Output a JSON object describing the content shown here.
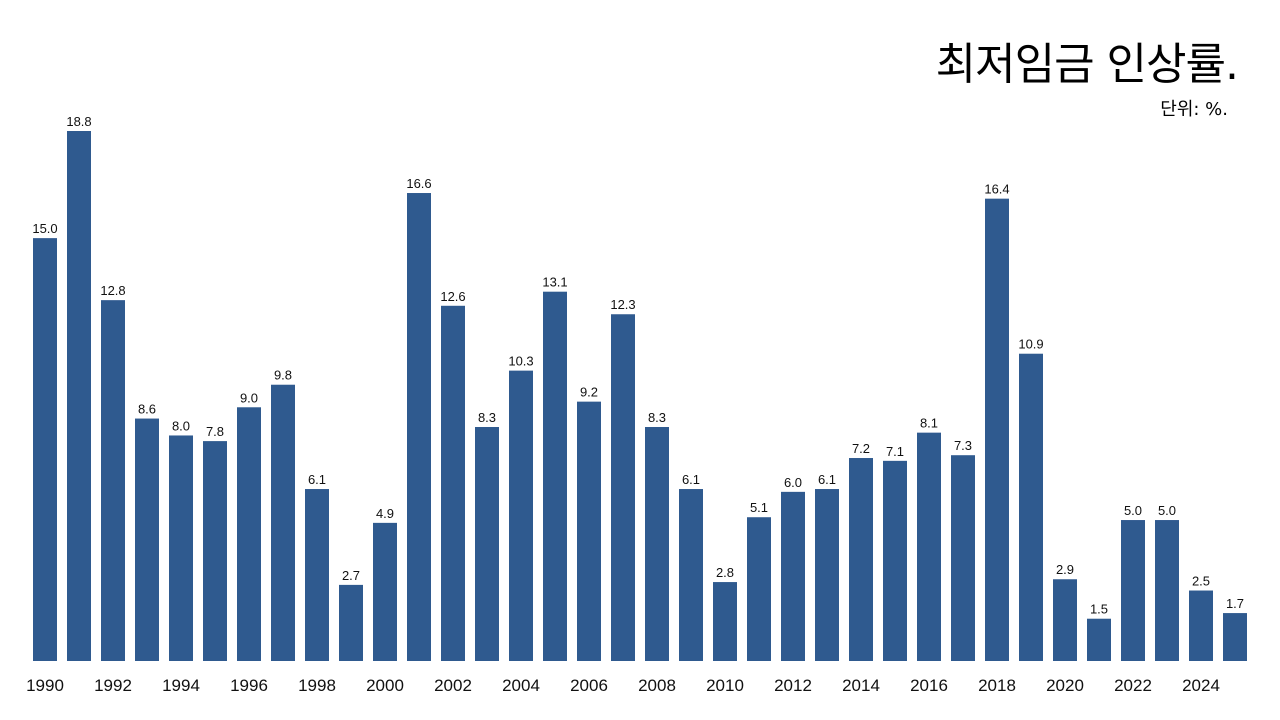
{
  "header": {
    "title": "최저임금 인상률.",
    "unit": "단위: %."
  },
  "colors": {
    "bar": "#2f5a8f",
    "background": "#ffffff",
    "text": "#111111"
  },
  "chart_data": {
    "type": "bar",
    "title": "최저임금 인상률.",
    "subtitle": "단위: %.",
    "xlabel": "",
    "ylabel": "",
    "categories": [
      "1990",
      "1991",
      "1992",
      "1993",
      "1994",
      "1995",
      "1996",
      "1997",
      "1998",
      "1999",
      "2000",
      "2001",
      "2002",
      "2003",
      "2004",
      "2005",
      "2006",
      "2007",
      "2008",
      "2009",
      "2010",
      "2011",
      "2012",
      "2013",
      "2014",
      "2015",
      "2016",
      "2017",
      "2018",
      "2019",
      "2020",
      "2021",
      "2022",
      "2023",
      "2024",
      "2025"
    ],
    "values": [
      15.0,
      18.8,
      12.8,
      8.6,
      8.0,
      7.8,
      9.0,
      9.8,
      6.1,
      2.7,
      4.9,
      16.6,
      12.6,
      8.3,
      10.3,
      13.1,
      9.2,
      12.3,
      8.3,
      6.1,
      2.8,
      5.1,
      6.0,
      6.1,
      7.2,
      7.1,
      8.1,
      7.3,
      16.4,
      10.9,
      2.9,
      1.5,
      5.0,
      5.0,
      2.5,
      1.7
    ],
    "value_labels": [
      "15.0",
      "18.8",
      "12.8",
      "8.6",
      "8.0",
      "7.8",
      "9.0",
      "9.8",
      "6.1",
      "2.7",
      "4.9",
      "16.6",
      "12.6",
      "8.3",
      "10.3",
      "13.1",
      "9.2",
      "12.3",
      "8.3",
      "6.1",
      "2.8",
      "5.1",
      "6.0",
      "6.1",
      "7.2",
      "7.1",
      "8.1",
      "7.3",
      "16.4",
      "10.9",
      "2.9",
      "1.5",
      "5.0",
      "5.0",
      "2.5",
      "1.7"
    ],
    "tick_labels": [
      "1990",
      "1992",
      "1994",
      "1996",
      "1998",
      "2000",
      "2002",
      "2004",
      "2006",
      "2008",
      "2010",
      "2012",
      "2014",
      "2016",
      "2018",
      "2020",
      "2022",
      "2024"
    ],
    "ylim": [
      0,
      18.8
    ],
    "grid": false,
    "legend": "none"
  }
}
